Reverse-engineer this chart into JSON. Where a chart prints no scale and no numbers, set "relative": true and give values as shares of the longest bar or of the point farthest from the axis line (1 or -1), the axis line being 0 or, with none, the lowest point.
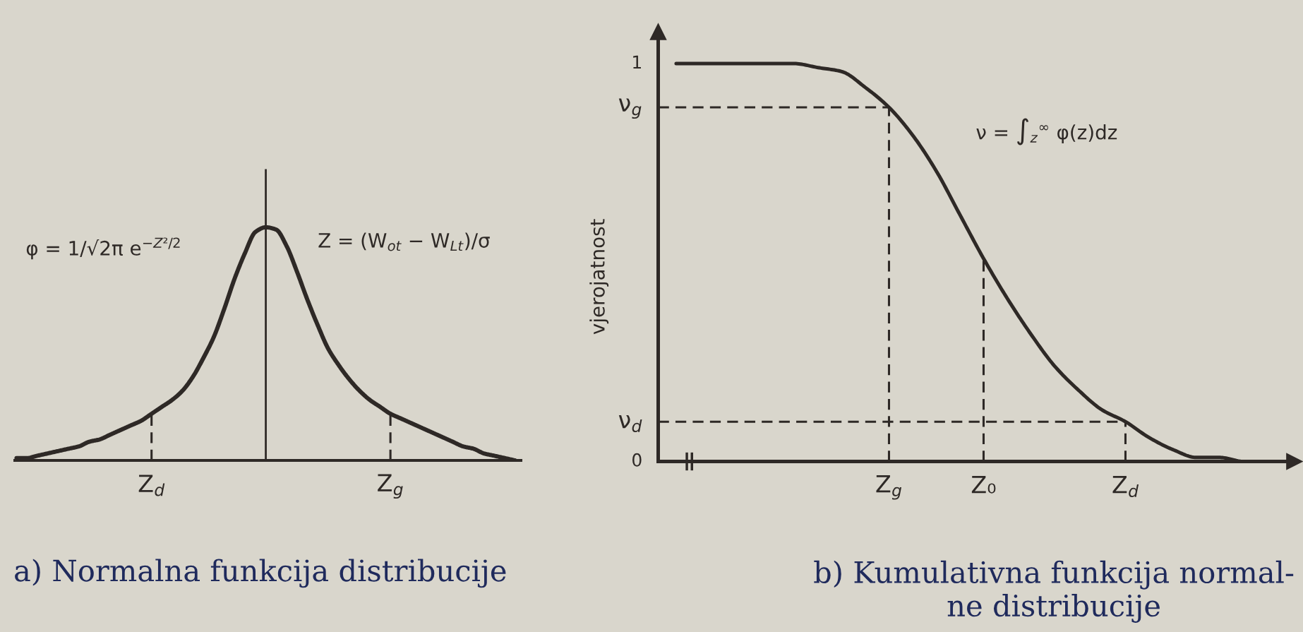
{
  "chart_data": [
    {
      "type": "line",
      "title": "a) Normalna funkcija distribucije",
      "relative": true,
      "categories": [
        null,
        null,
        null,
        null,
        null,
        null,
        null,
        null,
        null,
        null,
        null,
        null,
        null,
        "Z$_{d}$",
        null,
        null,
        null,
        null,
        null,
        null,
        null,
        null,
        null,
        null,
        null,
        null,
        null,
        null,
        null,
        null,
        null,
        null,
        null,
        null,
        null,
        null,
        "Z$_{g}$",
        null,
        null,
        null,
        null,
        null,
        null,
        null,
        null,
        null,
        null,
        null,
        null
      ],
      "series": [
        {
          "color": "#2e2926",
          "values": [
            0.01,
            0.01,
            0.02,
            0.03,
            0.04,
            0.05,
            0.06,
            0.08,
            0.09,
            0.11,
            0.13,
            0.15,
            0.17,
            0.2,
            0.23,
            0.26,
            0.3,
            0.36,
            0.44,
            0.53,
            0.65,
            0.78,
            0.89,
            0.98,
            1.0,
            0.99,
            0.92,
            0.81,
            0.69,
            0.58,
            0.48,
            0.41,
            0.35,
            0.3,
            0.26,
            0.23,
            0.2,
            0.18,
            0.16,
            0.14,
            0.12,
            0.1,
            0.08,
            0.06,
            0.05,
            0.03,
            0.02,
            0.01,
            0.0
          ]
        }
      ],
      "ref_lines": [
        {
          "axis": "x",
          "value": "Z$_{d}$",
          "color": "#2e2926",
          "line_style": "dashed"
        },
        {
          "axis": "x",
          "value": "Z$_{g}$",
          "color": "#2e2926",
          "line_style": "dashed"
        }
      ],
      "annotations": [
        "φ = 1/√2π e$^{−Z²/2}$",
        "Z = (W$_{ot}$ − W$_{Lt}$)/σ"
      ]
    },
    {
      "type": "line",
      "title": "b) Kumulativna funkcija normal-\nne distribucije",
      "ylabel": "vjerojatnost",
      "categories": [
        null,
        null,
        null,
        null,
        null,
        null,
        null,
        null,
        null,
        "Z$_{g}$",
        null,
        null,
        null,
        "Z₀",
        null,
        null,
        null,
        null,
        null,
        "Z$_{d}$",
        null,
        null,
        null,
        null,
        null,
        null
      ],
      "series": [
        {
          "color": "#2e2926",
          "values": [
            1.0,
            1.0,
            1.0,
            1.0,
            1.0,
            1.0,
            0.99,
            0.98,
            0.94,
            0.89,
            0.82,
            0.73,
            0.62,
            0.51,
            0.41,
            0.32,
            0.24,
            0.18,
            0.13,
            0.1,
            0.06,
            0.03,
            0.01,
            0.01,
            0.0,
            0.0
          ]
        }
      ],
      "ylim": [
        0,
        1.08
      ],
      "yticks": [
        0,
        {
          "value": 0.1,
          "label": "ν$_{d}$"
        },
        {
          "value": 0.89,
          "label": "ν$_{g}$"
        },
        1
      ],
      "ref_lines": [
        {
          "axis": "y",
          "value": 0.89,
          "color": "#2e2926",
          "line_style": "dashed"
        },
        {
          "axis": "y",
          "value": 0.1,
          "color": "#2e2926",
          "line_style": "dashed"
        },
        {
          "axis": "x",
          "value": "Z$_{g}$",
          "color": "#2e2926",
          "line_style": "dashed"
        },
        {
          "axis": "x",
          "value": "Z₀",
          "color": "#2e2926",
          "line_style": "dashed"
        },
        {
          "axis": "x",
          "value": "Z$_{d}$",
          "color": "#2e2926",
          "line_style": "dashed"
        }
      ],
      "annotations": [
        "ν = ∫$_{z}$$^{∞}$ φ(z)dz"
      ]
    }
  ]
}
